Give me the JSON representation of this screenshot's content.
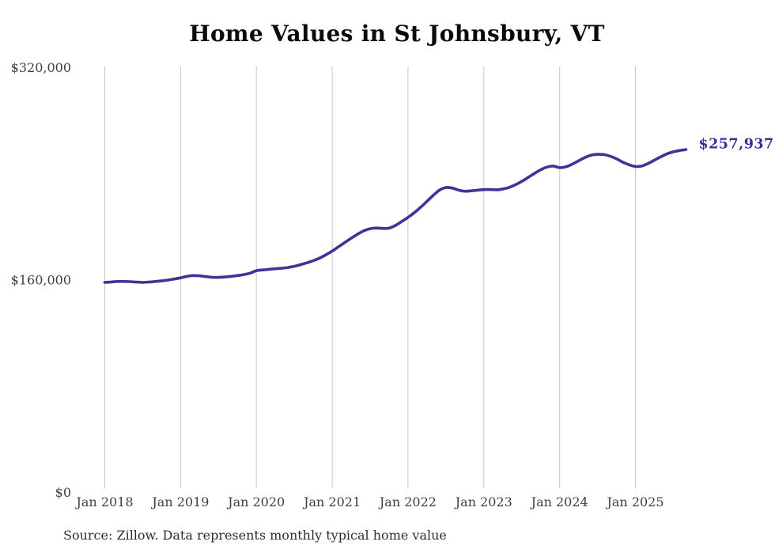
{
  "page": {
    "title": "Home Values in St Johnsbury, VT",
    "source_note": "Source: Zillow. Data represents monthly typical home value"
  },
  "colors": {
    "line": "#3a3597",
    "value_label": "#34309b",
    "gridline": "#c9c9c9",
    "axis_text": "#3f3f3f",
    "title_text": "#0b0b0b",
    "source_text": "#2e2e2e",
    "background": "#ffffff"
  },
  "chart_data": {
    "type": "line",
    "title": "Home Values in St Johnsbury, VT",
    "xlabel": "",
    "ylabel": "",
    "ylim": [
      0,
      320000
    ],
    "grid": "vertical-only",
    "legend": "none",
    "final_value": 257937,
    "final_value_label": "$257,937",
    "y_ticks": [
      {
        "value": 0,
        "label": "$0"
      },
      {
        "value": 160000,
        "label": "$160,000"
      },
      {
        "value": 320000,
        "label": "$320,000"
      }
    ],
    "x_ticks": [
      {
        "month_index": 0,
        "label": "Jan 2018"
      },
      {
        "month_index": 12,
        "label": "Jan 2019"
      },
      {
        "month_index": 24,
        "label": "Jan 2020"
      },
      {
        "month_index": 36,
        "label": "Jan 2021"
      },
      {
        "month_index": 48,
        "label": "Jan 2022"
      },
      {
        "month_index": 60,
        "label": "Jan 2023"
      },
      {
        "month_index": 72,
        "label": "Jan 2024"
      },
      {
        "month_index": 84,
        "label": "Jan 2025"
      }
    ],
    "months": [
      "2018-01",
      "2018-02",
      "2018-03",
      "2018-04",
      "2018-05",
      "2018-06",
      "2018-07",
      "2018-08",
      "2018-09",
      "2018-10",
      "2018-11",
      "2018-12",
      "2019-01",
      "2019-02",
      "2019-03",
      "2019-04",
      "2019-05",
      "2019-06",
      "2019-07",
      "2019-08",
      "2019-09",
      "2019-10",
      "2019-11",
      "2019-12",
      "2020-01",
      "2020-02",
      "2020-03",
      "2020-04",
      "2020-05",
      "2020-06",
      "2020-07",
      "2020-08",
      "2020-09",
      "2020-10",
      "2020-11",
      "2020-12",
      "2021-01",
      "2021-02",
      "2021-03",
      "2021-04",
      "2021-05",
      "2021-06",
      "2021-07",
      "2021-08",
      "2021-09",
      "2021-10",
      "2021-11",
      "2021-12",
      "2022-01",
      "2022-02",
      "2022-03",
      "2022-04",
      "2022-05",
      "2022-06",
      "2022-07",
      "2022-08",
      "2022-09",
      "2022-10",
      "2022-11",
      "2022-12",
      "2023-01",
      "2023-02",
      "2023-03",
      "2023-04",
      "2023-05",
      "2023-06",
      "2023-07",
      "2023-08",
      "2023-09",
      "2023-10",
      "2023-11",
      "2023-12",
      "2024-01",
      "2024-02",
      "2024-03",
      "2024-04",
      "2024-05",
      "2024-06",
      "2024-07",
      "2024-08",
      "2024-09",
      "2024-10",
      "2024-11",
      "2024-12",
      "2025-01",
      "2025-02",
      "2025-03",
      "2025-04",
      "2025-05",
      "2025-06",
      "2025-07",
      "2025-08",
      "2025-09"
    ],
    "values": [
      158000,
      158300,
      158600,
      158700,
      158500,
      158200,
      158000,
      158200,
      158600,
      159100,
      159700,
      160500,
      161400,
      162500,
      163100,
      162900,
      162300,
      161800,
      161700,
      162000,
      162500,
      163100,
      163800,
      164900,
      166800,
      167300,
      167800,
      168200,
      168600,
      169200,
      170100,
      171300,
      172700,
      174300,
      176200,
      178700,
      181500,
      184800,
      188000,
      191200,
      194200,
      196800,
      198400,
      198900,
      198600,
      198800,
      200800,
      203800,
      206900,
      210500,
      214500,
      219000,
      223500,
      227500,
      229400,
      229000,
      227500,
      226600,
      226900,
      227400,
      227800,
      227900,
      227700,
      228300,
      229500,
      231500,
      234000,
      237000,
      240000,
      242800,
      244800,
      245600,
      244400,
      245000,
      247000,
      249500,
      252000,
      253800,
      254400,
      254200,
      253000,
      251000,
      248500,
      246500,
      245300,
      245600,
      247500,
      250000,
      252500,
      254800,
      256300,
      257300,
      257937
    ]
  }
}
